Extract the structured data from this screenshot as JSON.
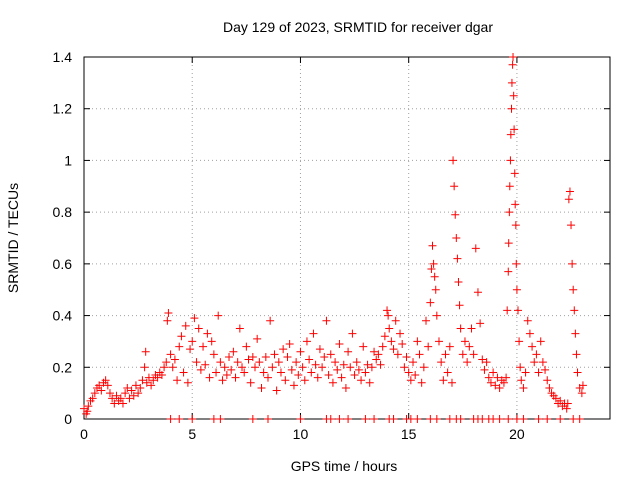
{
  "chart_data": {
    "type": "scatter",
    "title": "Day 129 of 2023, SRMTID for receiver dgar",
    "xlabel": "GPS time / hours",
    "ylabel": "SRMTID / TECUs",
    "xlim": [
      0,
      24.3
    ],
    "ylim": [
      0,
      1.4
    ],
    "grid": true,
    "marker": "+",
    "color": "#ff0000",
    "x_ticks": [
      0,
      5,
      10,
      15,
      20
    ],
    "x_tick_labels": [
      "0",
      "5",
      "10",
      "15",
      "20"
    ],
    "y_ticks": [
      0,
      0.2,
      0.4,
      0.6,
      0.8,
      1.0,
      1.2,
      1.4
    ],
    "y_tick_labels": [
      "0",
      "0.2",
      "0.4",
      "0.6",
      "0.8",
      "1",
      "1.2",
      "1.4"
    ],
    "series": [
      {
        "name": "SRMTID",
        "points": [
          [
            0.0,
            0.04
          ],
          [
            0.1,
            0.02
          ],
          [
            0.15,
            0.03
          ],
          [
            0.2,
            0.05
          ],
          [
            0.3,
            0.07
          ],
          [
            0.4,
            0.08
          ],
          [
            0.5,
            0.1
          ],
          [
            0.6,
            0.12
          ],
          [
            0.7,
            0.13
          ],
          [
            0.8,
            0.11
          ],
          [
            0.9,
            0.14
          ],
          [
            1.0,
            0.15
          ],
          [
            1.1,
            0.13
          ],
          [
            1.2,
            0.1
          ],
          [
            1.3,
            0.08
          ],
          [
            1.4,
            0.06
          ],
          [
            1.5,
            0.09
          ],
          [
            1.6,
            0.07
          ],
          [
            1.7,
            0.08
          ],
          [
            1.8,
            0.06
          ],
          [
            1.9,
            0.1
          ],
          [
            2.0,
            0.12
          ],
          [
            2.1,
            0.08
          ],
          [
            2.2,
            0.11
          ],
          [
            2.3,
            0.09
          ],
          [
            2.4,
            0.13
          ],
          [
            2.5,
            0.1
          ],
          [
            2.6,
            0.12
          ],
          [
            2.7,
            0.15
          ],
          [
            2.8,
            0.2
          ],
          [
            2.85,
            0.26
          ],
          [
            2.9,
            0.14
          ],
          [
            3.0,
            0.16
          ],
          [
            3.1,
            0.13
          ],
          [
            3.2,
            0.15
          ],
          [
            3.3,
            0.17
          ],
          [
            3.4,
            0.16
          ],
          [
            3.5,
            0.18
          ],
          [
            3.6,
            0.17
          ],
          [
            3.7,
            0.2
          ],
          [
            3.8,
            0.22
          ],
          [
            3.85,
            0.38
          ],
          [
            3.9,
            0.41
          ],
          [
            4.0,
            0.25
          ],
          [
            4.1,
            0.2
          ],
          [
            4.2,
            0.23
          ],
          [
            4.3,
            0.15
          ],
          [
            4.4,
            0.28
          ],
          [
            4.5,
            0.32
          ],
          [
            4.6,
            0.18
          ],
          [
            4.7,
            0.36
          ],
          [
            4.8,
            0.14
          ],
          [
            4.9,
            0.27
          ],
          [
            5.0,
            0.3
          ],
          [
            5.1,
            0.39
          ],
          [
            5.2,
            0.22
          ],
          [
            5.3,
            0.35
          ],
          [
            5.4,
            0.19
          ],
          [
            5.5,
            0.28
          ],
          [
            5.6,
            0.21
          ],
          [
            5.7,
            0.33
          ],
          [
            5.8,
            0.16
          ],
          [
            5.9,
            0.3
          ],
          [
            6.0,
            0.25
          ],
          [
            6.1,
            0.18
          ],
          [
            6.2,
            0.4
          ],
          [
            6.3,
            0.22
          ],
          [
            6.4,
            0.15
          ],
          [
            6.5,
            0.2
          ],
          [
            6.6,
            0.17
          ],
          [
            6.7,
            0.24
          ],
          [
            6.8,
            0.19
          ],
          [
            6.9,
            0.26
          ],
          [
            7.0,
            0.16
          ],
          [
            7.1,
            0.22
          ],
          [
            7.2,
            0.35
          ],
          [
            7.3,
            0.2
          ],
          [
            7.4,
            0.18
          ],
          [
            7.5,
            0.28
          ],
          [
            7.6,
            0.23
          ],
          [
            7.7,
            0.14
          ],
          [
            7.8,
            0.24
          ],
          [
            7.9,
            0.2
          ],
          [
            8.0,
            0.31
          ],
          [
            8.1,
            0.22
          ],
          [
            8.2,
            0.12
          ],
          [
            8.3,
            0.18
          ],
          [
            8.4,
            0.24
          ],
          [
            8.5,
            0.16
          ],
          [
            8.6,
            0.38
          ],
          [
            8.7,
            0.2
          ],
          [
            8.8,
            0.25
          ],
          [
            8.9,
            0.11
          ],
          [
            9.0,
            0.22
          ],
          [
            9.1,
            0.18
          ],
          [
            9.2,
            0.27
          ],
          [
            9.3,
            0.15
          ],
          [
            9.4,
            0.24
          ],
          [
            9.5,
            0.29
          ],
          [
            9.6,
            0.19
          ],
          [
            9.7,
            0.13
          ],
          [
            9.8,
            0.22
          ],
          [
            9.9,
            0.17
          ],
          [
            10.0,
            0.26
          ],
          [
            10.1,
            0.2
          ],
          [
            10.2,
            0.15
          ],
          [
            10.3,
            0.3
          ],
          [
            10.4,
            0.23
          ],
          [
            10.5,
            0.18
          ],
          [
            10.6,
            0.33
          ],
          [
            10.7,
            0.21
          ],
          [
            10.8,
            0.16
          ],
          [
            10.9,
            0.27
          ],
          [
            11.0,
            0.2
          ],
          [
            11.1,
            0.24
          ],
          [
            11.2,
            0.38
          ],
          [
            11.3,
            0.17
          ],
          [
            11.4,
            0.25
          ],
          [
            11.5,
            0.14
          ],
          [
            11.6,
            0.22
          ],
          [
            11.7,
            0.19
          ],
          [
            11.8,
            0.29
          ],
          [
            11.9,
            0.16
          ],
          [
            12.0,
            0.21
          ],
          [
            12.1,
            0.12
          ],
          [
            12.2,
            0.26
          ],
          [
            12.3,
            0.2
          ],
          [
            12.4,
            0.33
          ],
          [
            12.5,
            0.17
          ],
          [
            12.6,
            0.22
          ],
          [
            12.7,
            0.19
          ],
          [
            12.8,
            0.15
          ],
          [
            12.9,
            0.28
          ],
          [
            13.0,
            0.18
          ],
          [
            13.1,
            0.21
          ],
          [
            13.2,
            0.14
          ],
          [
            13.3,
            0.2
          ],
          [
            13.4,
            0.26
          ],
          [
            13.5,
            0.23
          ],
          [
            13.6,
            0.25
          ],
          [
            13.7,
            0.21
          ],
          [
            13.8,
            0.28
          ],
          [
            13.9,
            0.32
          ],
          [
            14.0,
            0.42
          ],
          [
            14.05,
            0.4
          ],
          [
            14.1,
            0.35
          ],
          [
            14.2,
            0.3
          ],
          [
            14.3,
            0.27
          ],
          [
            14.4,
            0.38
          ],
          [
            14.5,
            0.25
          ],
          [
            14.6,
            0.33
          ],
          [
            14.7,
            0.29
          ],
          [
            14.8,
            0.2
          ],
          [
            14.9,
            0.24
          ],
          [
            15.0,
            0.18
          ],
          [
            15.1,
            0.15
          ],
          [
            15.2,
            0.22
          ],
          [
            15.3,
            0.17
          ],
          [
            15.4,
            0.3
          ],
          [
            15.5,
            0.25
          ],
          [
            15.6,
            0.14
          ],
          [
            15.7,
            0.2
          ],
          [
            15.8,
            0.38
          ],
          [
            15.9,
            0.28
          ],
          [
            16.0,
            0.45
          ],
          [
            16.05,
            0.58
          ],
          [
            16.1,
            0.67
          ],
          [
            16.15,
            0.6
          ],
          [
            16.2,
            0.55
          ],
          [
            16.25,
            0.5
          ],
          [
            16.3,
            0.4
          ],
          [
            16.4,
            0.3
          ],
          [
            16.5,
            0.22
          ],
          [
            16.6,
            0.15
          ],
          [
            16.7,
            0.25
          ],
          [
            16.8,
            0.18
          ],
          [
            16.9,
            0.28
          ],
          [
            17.0,
            0.14
          ],
          [
            17.05,
            1.0
          ],
          [
            17.1,
            0.9
          ],
          [
            17.15,
            0.79
          ],
          [
            17.2,
            0.7
          ],
          [
            17.25,
            0.62
          ],
          [
            17.3,
            0.53
          ],
          [
            17.35,
            0.44
          ],
          [
            17.4,
            0.35
          ],
          [
            17.5,
            0.25
          ],
          [
            17.6,
            0.3
          ],
          [
            17.7,
            0.22
          ],
          [
            17.8,
            0.28
          ],
          [
            17.9,
            0.35
          ],
          [
            18.0,
            0.25
          ],
          [
            18.1,
            0.66
          ],
          [
            18.2,
            0.49
          ],
          [
            18.3,
            0.37
          ],
          [
            18.4,
            0.23
          ],
          [
            18.5,
            0.19
          ],
          [
            18.6,
            0.22
          ],
          [
            18.7,
            0.16
          ],
          [
            18.8,
            0.14
          ],
          [
            18.9,
            0.18
          ],
          [
            19.0,
            0.13
          ],
          [
            19.1,
            0.16
          ],
          [
            19.2,
            0.12
          ],
          [
            19.3,
            0.15
          ],
          [
            19.4,
            0.14
          ],
          [
            19.5,
            0.16
          ],
          [
            19.55,
            0.42
          ],
          [
            19.6,
            0.57
          ],
          [
            19.62,
            0.68
          ],
          [
            19.65,
            0.8
          ],
          [
            19.67,
            0.9
          ],
          [
            19.7,
            1.0
          ],
          [
            19.72,
            1.1
          ],
          [
            19.75,
            1.2
          ],
          [
            19.77,
            1.3
          ],
          [
            19.8,
            1.37
          ],
          [
            19.82,
            1.4
          ],
          [
            19.85,
            1.25
          ],
          [
            19.87,
            1.12
          ],
          [
            19.9,
            0.95
          ],
          [
            19.92,
            0.83
          ],
          [
            19.95,
            0.75
          ],
          [
            19.97,
            0.6
          ],
          [
            20.0,
            0.5
          ],
          [
            20.05,
            0.42
          ],
          [
            20.1,
            0.3
          ],
          [
            20.15,
            0.2
          ],
          [
            20.2,
            0.15
          ],
          [
            20.3,
            0.12
          ],
          [
            20.4,
            0.18
          ],
          [
            20.5,
            0.38
          ],
          [
            20.6,
            0.33
          ],
          [
            20.7,
            0.28
          ],
          [
            20.8,
            0.22
          ],
          [
            20.9,
            0.25
          ],
          [
            21.0,
            0.18
          ],
          [
            21.1,
            0.3
          ],
          [
            21.2,
            0.22
          ],
          [
            21.3,
            0.19
          ],
          [
            21.4,
            0.15
          ],
          [
            21.5,
            0.12
          ],
          [
            21.6,
            0.1
          ],
          [
            21.7,
            0.09
          ],
          [
            21.8,
            0.08
          ],
          [
            21.9,
            0.06
          ],
          [
            22.0,
            0.07
          ],
          [
            22.1,
            0.05
          ],
          [
            22.2,
            0.06
          ],
          [
            22.3,
            0.04
          ],
          [
            22.35,
            0.06
          ],
          [
            22.4,
            0.85
          ],
          [
            22.45,
            0.88
          ],
          [
            22.5,
            0.75
          ],
          [
            22.55,
            0.6
          ],
          [
            22.6,
            0.5
          ],
          [
            22.65,
            0.42
          ],
          [
            22.7,
            0.33
          ],
          [
            22.75,
            0.25
          ],
          [
            22.8,
            0.18
          ],
          [
            22.9,
            0.12
          ],
          [
            23.0,
            0.1
          ],
          [
            23.05,
            0.13
          ],
          [
            4.0,
            0.0
          ],
          [
            4.4,
            0.0
          ],
          [
            5.0,
            0.0
          ],
          [
            6.0,
            0.0
          ],
          [
            6.3,
            0.0
          ],
          [
            7.8,
            0.0
          ],
          [
            8.5,
            0.0
          ],
          [
            10.0,
            0.0
          ],
          [
            11.2,
            0.0
          ],
          [
            11.4,
            0.0
          ],
          [
            11.8,
            0.0
          ],
          [
            12.2,
            0.0
          ],
          [
            13.0,
            0.0
          ],
          [
            13.4,
            0.0
          ],
          [
            14.1,
            0.0
          ],
          [
            14.3,
            0.0
          ],
          [
            14.9,
            0.0
          ],
          [
            15.1,
            0.0
          ],
          [
            15.4,
            0.0
          ],
          [
            16.0,
            0.0
          ],
          [
            16.3,
            0.0
          ],
          [
            16.9,
            0.0
          ],
          [
            17.2,
            0.0
          ],
          [
            17.4,
            0.0
          ],
          [
            18.0,
            0.0
          ],
          [
            18.2,
            0.0
          ],
          [
            18.4,
            0.0
          ],
          [
            18.7,
            0.0
          ],
          [
            18.9,
            0.0
          ],
          [
            19.2,
            0.0
          ],
          [
            19.6,
            0.0
          ],
          [
            20.0,
            0.0
          ],
          [
            20.3,
            0.0
          ],
          [
            21.0,
            0.0
          ],
          [
            21.4,
            0.0
          ],
          [
            22.0,
            0.0
          ],
          [
            22.6,
            0.0
          ],
          [
            22.9,
            0.0
          ]
        ]
      }
    ]
  }
}
